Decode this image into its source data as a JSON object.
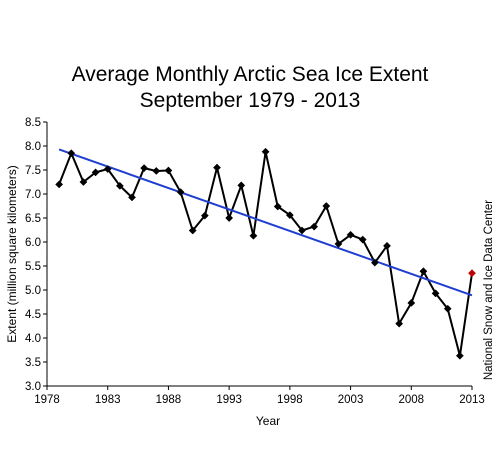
{
  "chart_data": {
    "type": "line",
    "title_lines": [
      "Average Monthly Arctic Sea Ice Extent",
      "September 1979 - 2013"
    ],
    "xlabel": "Year",
    "ylabel": "Extent (million square kilometers)",
    "source_note": "National Snow and Ice Data Center",
    "xlim": [
      1978,
      2013
    ],
    "ylim": [
      3.0,
      8.5
    ],
    "x_ticks": [
      "1978",
      "1983",
      "1988",
      "1993",
      "1998",
      "2003",
      "2008",
      "2013"
    ],
    "y_ticks": [
      "3.0",
      "3.5",
      "4.0",
      "4.5",
      "5.0",
      "5.5",
      "6.0",
      "6.5",
      "7.0",
      "7.5",
      "8.0",
      "8.5"
    ],
    "grid": false,
    "series": [
      {
        "role": "data",
        "color": "#000000",
        "marker": "diamond",
        "x": [
          1979,
          1980,
          1981,
          1982,
          1983,
          1984,
          1985,
          1986,
          1987,
          1988,
          1989,
          1990,
          1991,
          1992,
          1993,
          1994,
          1995,
          1996,
          1997,
          1998,
          1999,
          2000,
          2001,
          2002,
          2003,
          2004,
          2005,
          2006,
          2007,
          2008,
          2009,
          2010,
          2011,
          2012,
          2013
        ],
        "values": [
          7.2,
          7.85,
          7.25,
          7.45,
          7.52,
          7.17,
          6.93,
          7.54,
          7.48,
          7.49,
          7.04,
          6.24,
          6.55,
          7.55,
          6.5,
          7.18,
          6.13,
          7.88,
          6.74,
          6.56,
          6.24,
          6.32,
          6.75,
          5.96,
          6.15,
          6.05,
          5.57,
          5.92,
          4.3,
          4.73,
          5.39,
          4.93,
          4.61,
          3.63,
          5.35
        ],
        "last_point_color": "#c00000"
      },
      {
        "role": "trend",
        "color": "#1f3fd0",
        "x": [
          1979,
          2013
        ],
        "values": [
          7.93,
          4.89
        ]
      }
    ]
  }
}
